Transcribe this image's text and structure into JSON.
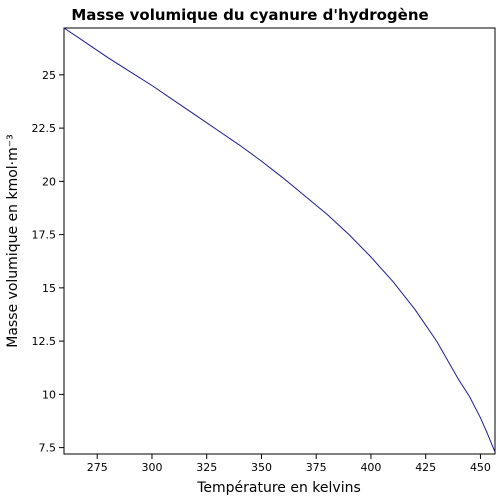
{
  "chart_data": {
    "type": "line",
    "title": "Masse volumique du cyanure d'hydrogène",
    "xlabel": "Température en kelvins",
    "ylabel": "Masse volumique en kmol·m⁻³",
    "xlim": [
      259.83,
      456.65
    ],
    "ylim": [
      7.2,
      27.2
    ],
    "grid": false,
    "legend": "none",
    "x_ticks": [
      275,
      300,
      325,
      350,
      375,
      400,
      425,
      450
    ],
    "x_tick_labels": [
      "275",
      "300",
      "325",
      "350",
      "375",
      "400",
      "425",
      "450"
    ],
    "y_ticks": [
      7.5,
      10,
      12.5,
      15,
      17.5,
      20,
      22.5,
      25
    ],
    "y_tick_labels": [
      "7.5",
      "10",
      "12.5",
      "15",
      "17.5",
      "20",
      "22.5",
      "25"
    ],
    "series": [
      {
        "color": "#1a1aa6",
        "x": [
          259.83,
          270,
          280,
          290,
          300,
          310,
          320,
          330,
          340,
          350,
          360,
          370,
          380,
          390,
          400,
          410,
          420,
          430,
          440,
          445,
          450,
          453,
          455,
          456,
          456.65
        ],
        "y": [
          27.2,
          26.5,
          25.8,
          25.15,
          24.5,
          23.8,
          23.1,
          22.4,
          21.7,
          20.95,
          20.15,
          19.3,
          18.45,
          17.5,
          16.45,
          15.3,
          14.0,
          12.5,
          10.7,
          9.9,
          8.9,
          8.2,
          7.7,
          7.45,
          7.3
        ]
      }
    ]
  }
}
